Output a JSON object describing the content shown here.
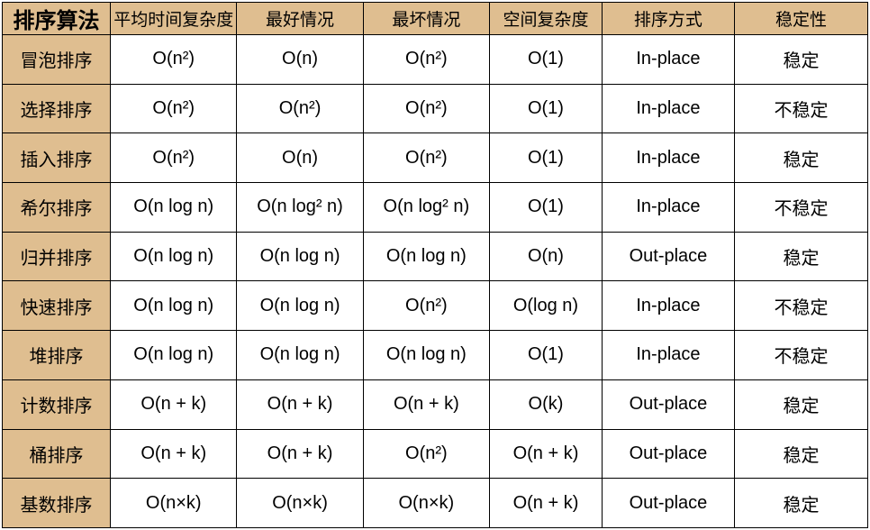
{
  "table": {
    "type": "table",
    "background_color": "#ffffff",
    "header_bg": "#dfbe90",
    "rowhead_bg": "#dfbe90",
    "cell_bg": "#ffffff",
    "border_color": "#000000",
    "text_color": "#000000",
    "header_fontsize": 19,
    "corner_fontsize": 24,
    "rowhead_fontsize": 20,
    "cell_fontsize": 20,
    "column_widths_pct": [
      12.5,
      14.6,
      14.6,
      14.6,
      13.0,
      15.3,
      15.4
    ],
    "columns": [
      "排序算法",
      "平均时间复杂度",
      "最好情况",
      "最坏情况",
      "空间复杂度",
      "排序方式",
      "稳定性"
    ],
    "rows": [
      [
        "冒泡排序",
        "O(n²)",
        "O(n)",
        "O(n²)",
        "O(1)",
        "In-place",
        "稳定"
      ],
      [
        "选择排序",
        "O(n²)",
        "O(n²)",
        "O(n²)",
        "O(1)",
        "In-place",
        "不稳定"
      ],
      [
        "插入排序",
        "O(n²)",
        "O(n)",
        "O(n²)",
        "O(1)",
        "In-place",
        "稳定"
      ],
      [
        "希尔排序",
        "O(n log n)",
        "O(n log² n)",
        "O(n log² n)",
        "O(1)",
        "In-place",
        "不稳定"
      ],
      [
        "归并排序",
        "O(n log n)",
        "O(n log n)",
        "O(n log n)",
        "O(n)",
        "Out-place",
        "稳定"
      ],
      [
        "快速排序",
        "O(n log n)",
        "O(n log n)",
        "O(n²)",
        "O(log n)",
        "In-place",
        "不稳定"
      ],
      [
        "堆排序",
        "O(n log n)",
        "O(n log n)",
        "O(n log n)",
        "O(1)",
        "In-place",
        "不稳定"
      ],
      [
        "计数排序",
        "O(n + k)",
        "O(n + k)",
        "O(n + k)",
        "O(k)",
        "Out-place",
        "稳定"
      ],
      [
        "桶排序",
        "O(n + k)",
        "O(n + k)",
        "O(n²)",
        "O(n + k)",
        "Out-place",
        "稳定"
      ],
      [
        "基数排序",
        "O(n×k)",
        "O(n×k)",
        "O(n×k)",
        "O(n + k)",
        "Out-place",
        "稳定"
      ]
    ]
  }
}
